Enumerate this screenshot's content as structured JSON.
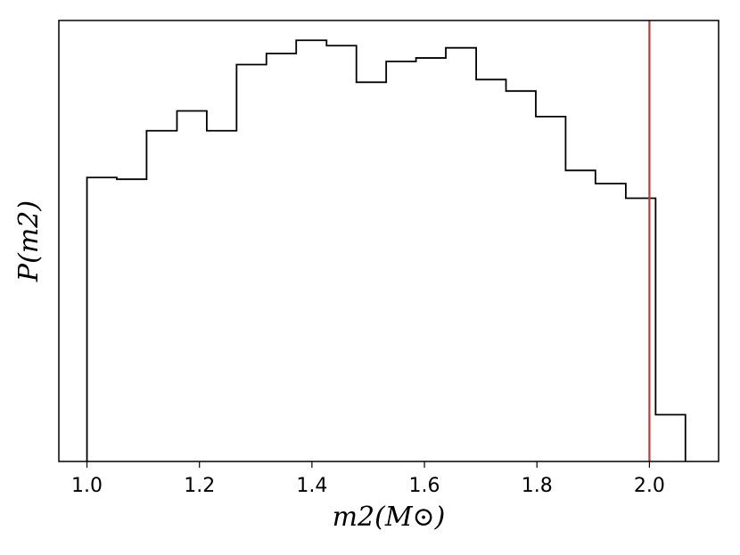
{
  "chart_data": {
    "type": "histogram",
    "xlabel": "m2(M⊙)",
    "ylabel": "P(m2)",
    "xlim": [
      0.95,
      2.123
    ],
    "ylim": [
      0,
      1.0
    ],
    "grid": false,
    "x_ticks": [
      1.0,
      1.2,
      1.4,
      1.6,
      1.8,
      2.0
    ],
    "x_tick_labels": [
      "1.0",
      "1.2",
      "1.4",
      "1.6",
      "1.8",
      "2.0"
    ],
    "y_ticks_visible": false,
    "step_edges": [
      1.0,
      1.053,
      1.106,
      1.16,
      1.213,
      1.266,
      1.319,
      1.372,
      1.426,
      1.479,
      1.532,
      1.585,
      1.638,
      1.692,
      1.745,
      1.798,
      1.851,
      1.904,
      1.958,
      2.011,
      2.064
    ],
    "step_values": [
      0.644,
      0.64,
      0.75,
      0.795,
      0.75,
      0.9,
      0.925,
      0.955,
      0.943,
      0.86,
      0.907,
      0.915,
      0.938,
      0.866,
      0.84,
      0.782,
      0.66,
      0.63,
      0.597,
      0.106
    ],
    "line_color": "#000000",
    "reference_line": {
      "x": 2.0,
      "color": "#c03a3a"
    }
  }
}
